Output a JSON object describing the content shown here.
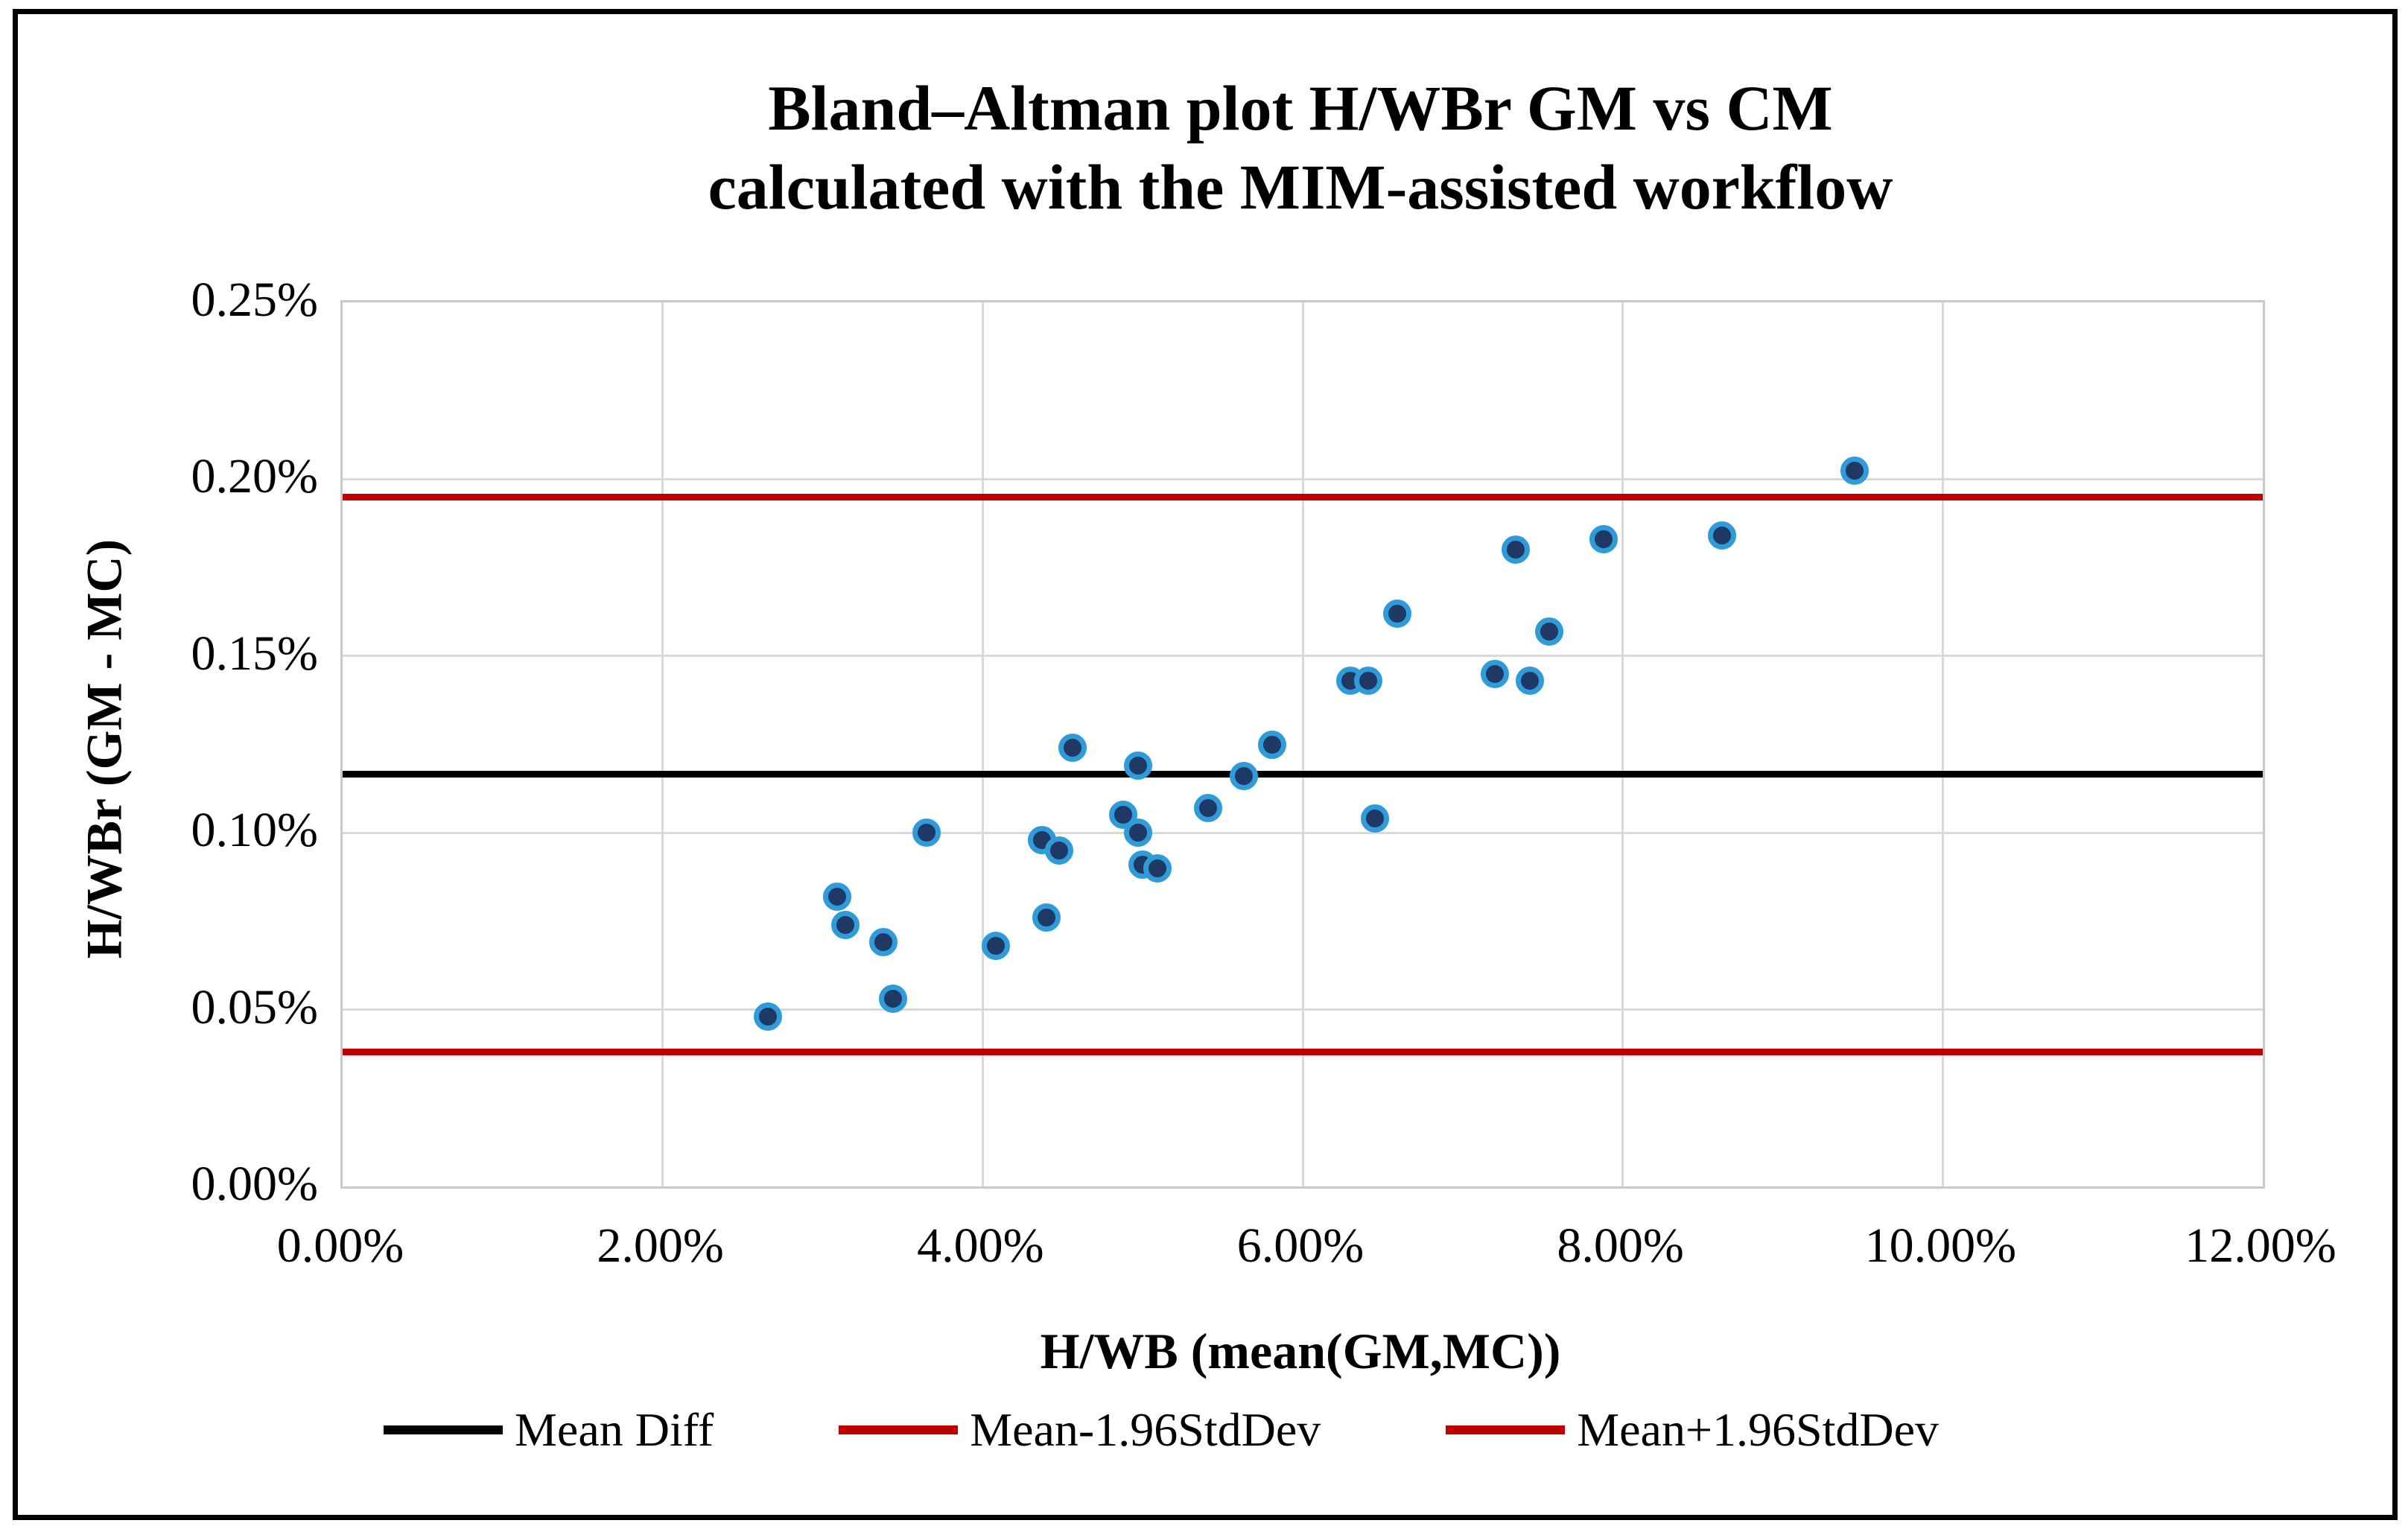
{
  "title": {
    "line1": "Bland–Altman plot H/WBr GM vs CM",
    "line2": "calculated with the MIM-assisted workflow"
  },
  "x_axis": {
    "title": "H/WB (mean(GM,MC))",
    "ticks": [
      {
        "value": 0,
        "label": "0.00%"
      },
      {
        "value": 2,
        "label": "2.00%"
      },
      {
        "value": 4,
        "label": "4.00%"
      },
      {
        "value": 6,
        "label": "6.00%"
      },
      {
        "value": 8,
        "label": "8.00%"
      },
      {
        "value": 10,
        "label": "10.00%"
      },
      {
        "value": 12,
        "label": "12.00%"
      }
    ],
    "min": 0,
    "max": 12
  },
  "y_axis": {
    "title": "H/WBr (GM - MC)",
    "ticks": [
      {
        "value": 0.25,
        "label": "0.25%"
      },
      {
        "value": 0.2,
        "label": "0.20%"
      },
      {
        "value": 0.15,
        "label": "0.15%"
      },
      {
        "value": 0.1,
        "label": "0.10%"
      },
      {
        "value": 0.05,
        "label": "0.05%"
      },
      {
        "value": 0.0,
        "label": "0.00%"
      }
    ],
    "min": 0,
    "max": 0.25
  },
  "legend": {
    "items": [
      {
        "label": "Mean Diff",
        "color": "#000000"
      },
      {
        "label": "Mean-1.96StdDev",
        "color": "#c00000"
      },
      {
        "label": "Mean+1.96StdDev",
        "color": "#c00000"
      }
    ]
  },
  "colors": {
    "marker_fill": "#1f3864",
    "marker_ring": "#2f9cd9",
    "mean_line": "#000000",
    "loa_line": "#c00000",
    "gridline": "#d9d9d9"
  },
  "chart_data": {
    "type": "scatter",
    "title": "Bland–Altman plot H/WBr GM vs CM calculated with the MIM-assisted workflow",
    "xlabel": "H/WB (mean(GM,MC))",
    "ylabel": "H/WBr (GM - MC)",
    "xlim": [
      0,
      12
    ],
    "ylim": [
      0,
      0.25
    ],
    "units": "percent",
    "grid": true,
    "legend_position": "bottom",
    "points": [
      [
        2.66,
        0.048
      ],
      [
        3.09,
        0.082
      ],
      [
        3.14,
        0.074
      ],
      [
        3.38,
        0.069
      ],
      [
        3.44,
        0.053
      ],
      [
        3.65,
        0.1
      ],
      [
        4.08,
        0.068
      ],
      [
        4.37,
        0.098
      ],
      [
        4.4,
        0.076
      ],
      [
        4.48,
        0.095
      ],
      [
        4.56,
        0.124
      ],
      [
        4.88,
        0.105
      ],
      [
        4.97,
        0.1
      ],
      [
        4.97,
        0.119
      ],
      [
        5.0,
        0.091
      ],
      [
        5.09,
        0.09
      ],
      [
        5.41,
        0.107
      ],
      [
        5.63,
        0.116
      ],
      [
        5.81,
        0.125
      ],
      [
        6.3,
        0.143
      ],
      [
        6.41,
        0.143
      ],
      [
        6.45,
        0.104
      ],
      [
        6.59,
        0.162
      ],
      [
        7.2,
        0.145
      ],
      [
        7.33,
        0.18
      ],
      [
        7.42,
        0.143
      ],
      [
        7.54,
        0.157
      ],
      [
        7.88,
        0.183
      ],
      [
        8.62,
        0.184
      ],
      [
        9.45,
        0.2025
      ]
    ],
    "ref_lines": [
      {
        "name": "Mean Diff",
        "value": 0.1165,
        "color": "#000000"
      },
      {
        "name": "Mean+1.96StdDev",
        "value": 0.195,
        "color": "#c00000"
      },
      {
        "name": "Mean-1.96StdDev",
        "value": 0.038,
        "color": "#c00000"
      }
    ]
  }
}
